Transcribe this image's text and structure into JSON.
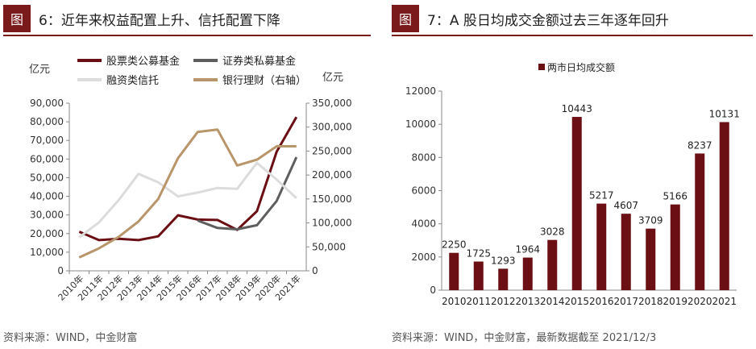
{
  "figures": [
    {
      "tag": "图",
      "title": "6：近年来权益配置上升、信托配置下降",
      "source": "资料来源：WIND，中金财富",
      "chart_data": {
        "type": "line",
        "left_unit": "亿元",
        "right_unit": "亿元",
        "categories": [
          "2010年",
          "2011年",
          "2012年",
          "2013年",
          "2014年",
          "2015年",
          "2016年",
          "2017年",
          "2018年",
          "2019年",
          "2020年",
          "2021年"
        ],
        "left_ylim": [
          0,
          90000
        ],
        "left_ticks": [
          "0",
          "10,000",
          "20,000",
          "30,000",
          "40,000",
          "50,000",
          "60,000",
          "70,000",
          "80,000",
          "90,000"
        ],
        "right_ylim": [
          0,
          350000
        ],
        "right_ticks": [
          "0",
          "50,000",
          "100,000",
          "150,000",
          "200,000",
          "250,000",
          "300,000",
          "350,000"
        ],
        "legend_position": "top",
        "series": [
          {
            "name": "股票类公募基金",
            "axis": "left",
            "color": "#6b0f14",
            "values": [
              21000,
              16500,
              17200,
              16500,
              18500,
              29800,
              27500,
              27300,
              22000,
              32000,
              64000,
              82500
            ]
          },
          {
            "name": "证券类私募基金",
            "axis": "left",
            "color": "#5e5e5e",
            "values": [
              null,
              null,
              null,
              null,
              null,
              null,
              27000,
              23000,
              22300,
              24500,
              37500,
              61000
            ]
          },
          {
            "name": "融资类信托",
            "axis": "left",
            "color": "#dcdcdc",
            "values": [
              18000,
              26000,
              38000,
              52000,
              47500,
              40000,
              42000,
              44500,
              44000,
              58000,
              49000,
              39000
            ]
          },
          {
            "name": "银行理财（右轴）",
            "axis": "right",
            "color": "#b8956a",
            "values": [
              28000,
              47000,
              71000,
              103000,
              150000,
              235000,
              290000,
              295000,
              220000,
              232000,
              260000,
              260000
            ]
          }
        ]
      }
    },
    {
      "tag": "图",
      "title": "7：A 股日均成交金额过去三年逐年回升",
      "source": "资料来源：WIND，中金财富，最新数据截至 2021/12/3",
      "chart_data": {
        "type": "bar",
        "legend": "两市日均成交额",
        "legend_position": "top-left",
        "categories": [
          "2010",
          "2011",
          "2012",
          "2013",
          "2014",
          "2015",
          "2016",
          "2017",
          "2018",
          "2019",
          "2020",
          "2021"
        ],
        "values": [
          2250,
          1725,
          1293,
          1964,
          3028,
          10443,
          5217,
          4607,
          3709,
          5166,
          8237,
          10131
        ],
        "ylim": [
          0,
          12000
        ],
        "yticks": [
          "0",
          "2000",
          "4000",
          "6000",
          "8000",
          "10000",
          "12000"
        ],
        "color": "#6b0f14"
      }
    }
  ]
}
